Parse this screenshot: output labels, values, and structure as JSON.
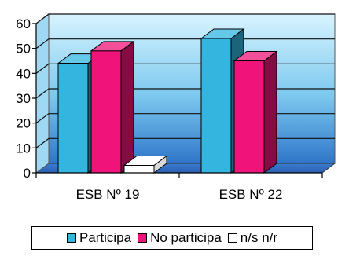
{
  "chart_data": {
    "type": "bar",
    "categories": [
      "ESB Nº 19",
      "ESB Nº 22"
    ],
    "series": [
      {
        "name": "Participa",
        "values": [
          44,
          54
        ],
        "color": "#33b5e0"
      },
      {
        "name": "No participa",
        "values": [
          49,
          45
        ],
        "color": "#f0147a"
      },
      {
        "name": "n/s n/r",
        "values": [
          3,
          0
        ],
        "color": "#ffffff"
      }
    ],
    "ylim": [
      0,
      60
    ],
    "yticks": [
      0,
      10,
      20,
      30,
      40,
      50,
      60
    ],
    "grid": true,
    "legend": "bottom"
  },
  "legend": {
    "items": [
      {
        "label": "Participa",
        "color": "#33b5e0"
      },
      {
        "label": "No participa",
        "color": "#f0147a"
      },
      {
        "label": "n/s n/r",
        "color": "#ffffff"
      }
    ]
  }
}
